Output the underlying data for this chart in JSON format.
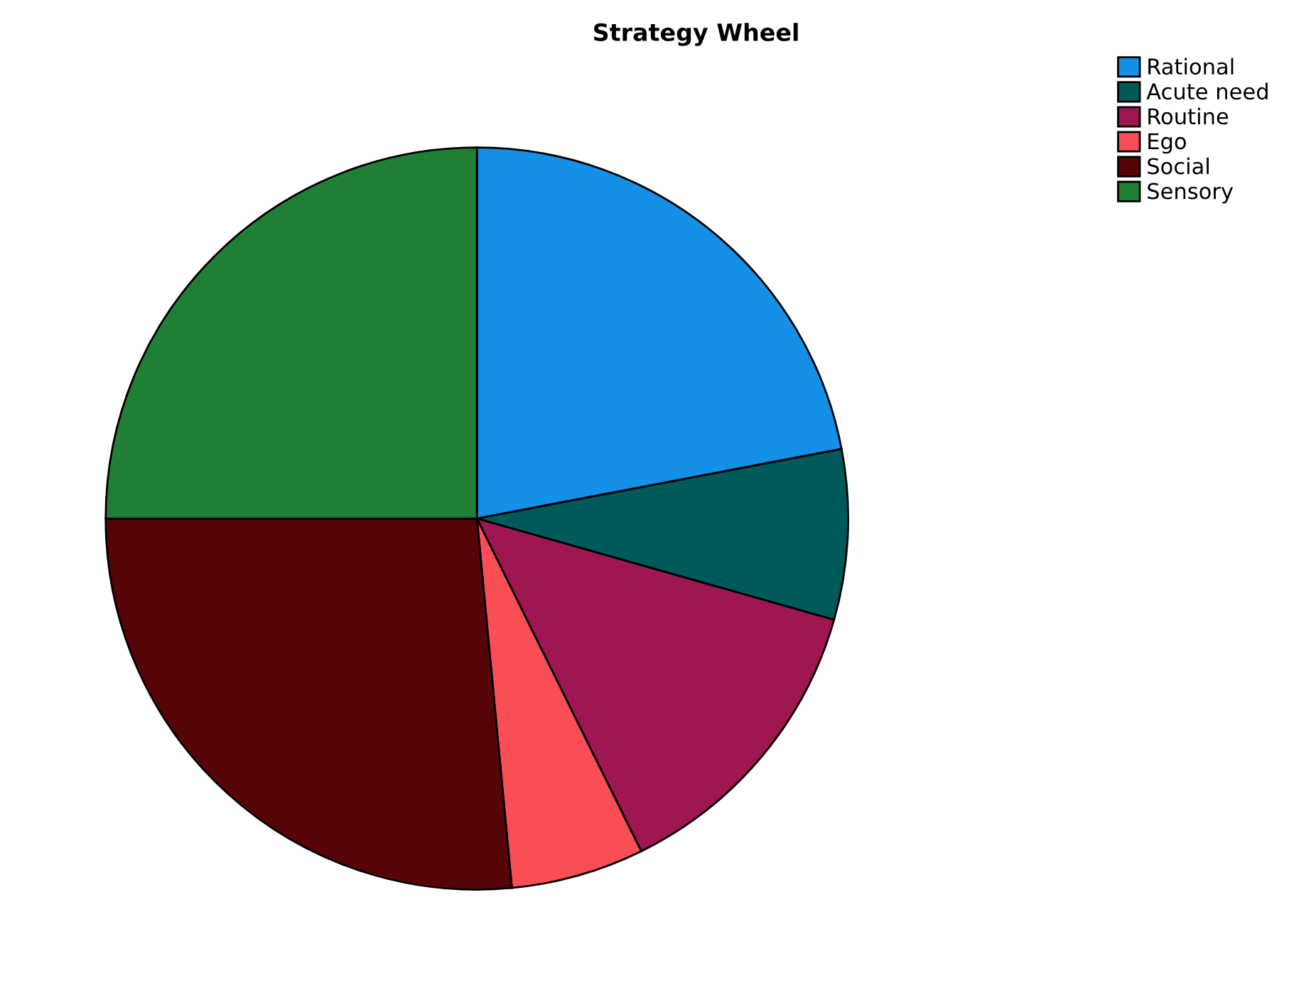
{
  "chart_data": {
    "type": "pie",
    "title": "Strategy Wheel",
    "categories": [
      "Rational",
      "Acute need",
      "Routine",
      "Ego",
      "Social",
      "Sensory"
    ],
    "values": [
      22.0,
      7.4,
      13.3,
      5.8,
      26.5,
      25.0
    ],
    "colors": [
      "#1490e6",
      "#005a5a",
      "#9e1752",
      "#fa4e57",
      "#570408",
      "#1e7f35"
    ],
    "legend": "top right"
  }
}
